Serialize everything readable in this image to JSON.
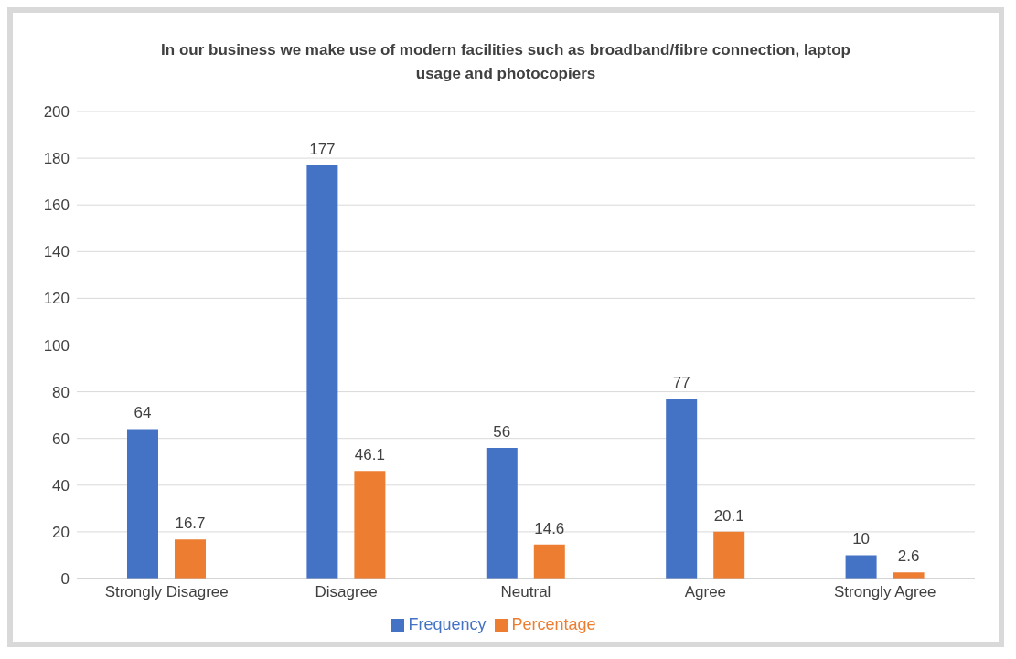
{
  "chart_data": {
    "type": "bar",
    "title": "In our business we make use of modern facilities such as broadband/fibre connection, laptop usage and photocopiers",
    "categories": [
      "Strongly Disagree",
      "Disagree",
      "Neutral",
      "Agree",
      "Strongly Agree"
    ],
    "series": [
      {
        "name": "Frequency",
        "color": "#4472c4",
        "values": [
          64,
          177,
          56,
          77,
          10
        ]
      },
      {
        "name": "Percentage",
        "color": "#ed7d31",
        "values": [
          16.7,
          46.1,
          14.6,
          20.1,
          2.6
        ]
      }
    ],
    "ylim": [
      0,
      200
    ],
    "yticks": [
      0,
      20,
      40,
      60,
      80,
      100,
      120,
      140,
      160,
      180,
      200
    ],
    "grid": "y",
    "legend": "bottom",
    "data_labels": true
  }
}
